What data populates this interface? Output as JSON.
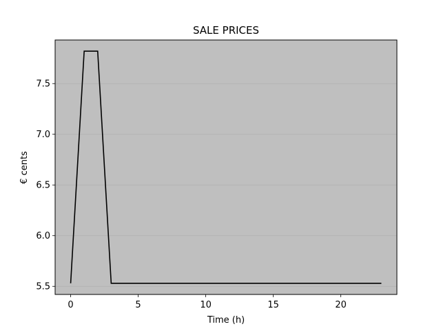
{
  "chart_data": {
    "type": "line",
    "title": "SALE PRICES",
    "xlabel": "Time (h)",
    "ylabel": "€ cents",
    "xlim": [
      -1.15,
      24.15
    ],
    "ylim": [
      5.42,
      7.93
    ],
    "xticks": [
      0,
      5,
      10,
      15,
      20
    ],
    "yticks": [
      5.5,
      6.0,
      6.5,
      7.0,
      7.5
    ],
    "xtick_labels": [
      "0",
      "5",
      "10",
      "15",
      "20"
    ],
    "ytick_labels": [
      "5.5",
      "6.0",
      "6.5",
      "7.0",
      "7.5"
    ],
    "grid": true,
    "grid_axis": "y",
    "background_color": "#bfbfbf",
    "grid_color": "#b0b0b0",
    "line_color": "#000000",
    "series": [
      {
        "x": [
          0,
          1,
          2,
          3,
          4,
          5,
          6,
          7,
          8,
          9,
          10,
          11,
          12,
          13,
          14,
          15,
          16,
          17,
          18,
          19,
          20,
          21,
          22,
          23
        ],
        "values": [
          5.53,
          7.82,
          7.82,
          5.53,
          5.53,
          5.53,
          5.53,
          5.53,
          5.53,
          5.53,
          5.53,
          5.53,
          5.53,
          5.53,
          5.53,
          5.53,
          5.53,
          5.53,
          5.53,
          5.53,
          5.53,
          5.53,
          5.53,
          5.53
        ]
      }
    ]
  }
}
